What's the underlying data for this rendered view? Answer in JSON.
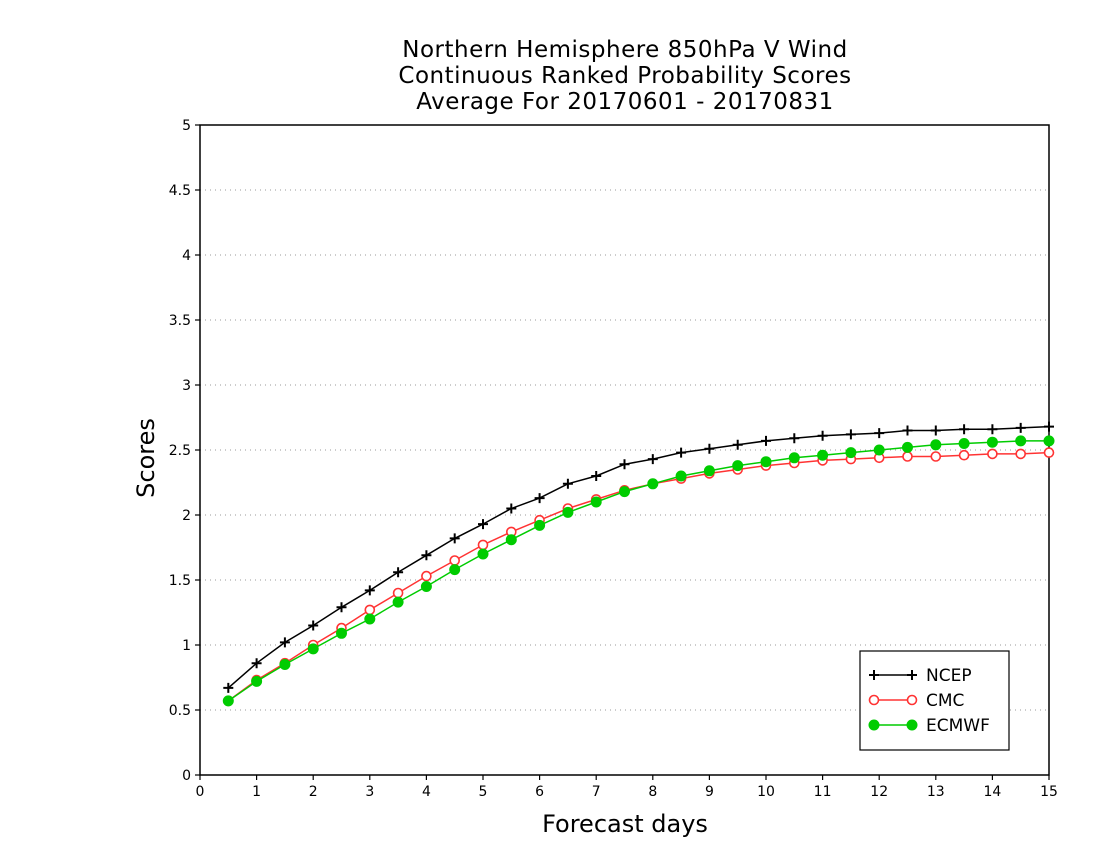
{
  "chart_data": {
    "type": "line",
    "title_lines": [
      "Northern Hemisphere 850hPa V Wind",
      "Continuous Ranked Probability Scores",
      "Average For 20170601 - 20170831"
    ],
    "xlabel": "Forecast days",
    "ylabel": "Scores",
    "xlim": [
      0,
      15
    ],
    "ylim": [
      0,
      5
    ],
    "x_ticks": [
      "0",
      "1",
      "2",
      "3",
      "4",
      "5",
      "6",
      "7",
      "8",
      "9",
      "10",
      "11",
      "12",
      "13",
      "14",
      "15"
    ],
    "y_ticks": [
      "0",
      "0.5",
      "1",
      "1.5",
      "2",
      "2.5",
      "3",
      "3.5",
      "4",
      "4.5",
      "5"
    ],
    "grid": "horizontal dotted",
    "legend_position": "bottom-right",
    "x": [
      0.5,
      1,
      1.5,
      2,
      2.5,
      3,
      3.5,
      4,
      4.5,
      5,
      5.5,
      6,
      6.5,
      7,
      7.5,
      8,
      8.5,
      9,
      9.5,
      10,
      10.5,
      11,
      11.5,
      12,
      12.5,
      13,
      13.5,
      14,
      14.5,
      15
    ],
    "series": [
      {
        "name": "NCEP",
        "color": "#000000",
        "marker": "plus",
        "values": [
          0.67,
          0.86,
          1.02,
          1.15,
          1.29,
          1.42,
          1.56,
          1.69,
          1.82,
          1.93,
          2.05,
          2.13,
          2.24,
          2.3,
          2.39,
          2.43,
          2.48,
          2.51,
          2.54,
          2.57,
          2.59,
          2.61,
          2.62,
          2.63,
          2.65,
          2.65,
          2.66,
          2.66,
          2.67,
          2.68
        ]
      },
      {
        "name": "CMC",
        "color": "#ff3333",
        "marker": "open-circle",
        "values": [
          0.57,
          0.73,
          0.86,
          1.0,
          1.13,
          1.27,
          1.4,
          1.53,
          1.65,
          1.77,
          1.87,
          1.96,
          2.05,
          2.12,
          2.19,
          2.24,
          2.28,
          2.32,
          2.35,
          2.38,
          2.4,
          2.42,
          2.43,
          2.44,
          2.45,
          2.45,
          2.46,
          2.47,
          2.47,
          2.48
        ]
      },
      {
        "name": "ECMWF",
        "color": "#00cc00",
        "marker": "filled-circle",
        "values": [
          0.57,
          0.72,
          0.85,
          0.97,
          1.09,
          1.2,
          1.33,
          1.45,
          1.58,
          1.7,
          1.81,
          1.92,
          2.02,
          2.1,
          2.18,
          2.24,
          2.3,
          2.34,
          2.38,
          2.41,
          2.44,
          2.46,
          2.48,
          2.5,
          2.52,
          2.54,
          2.55,
          2.56,
          2.57,
          2.57
        ]
      }
    ]
  }
}
